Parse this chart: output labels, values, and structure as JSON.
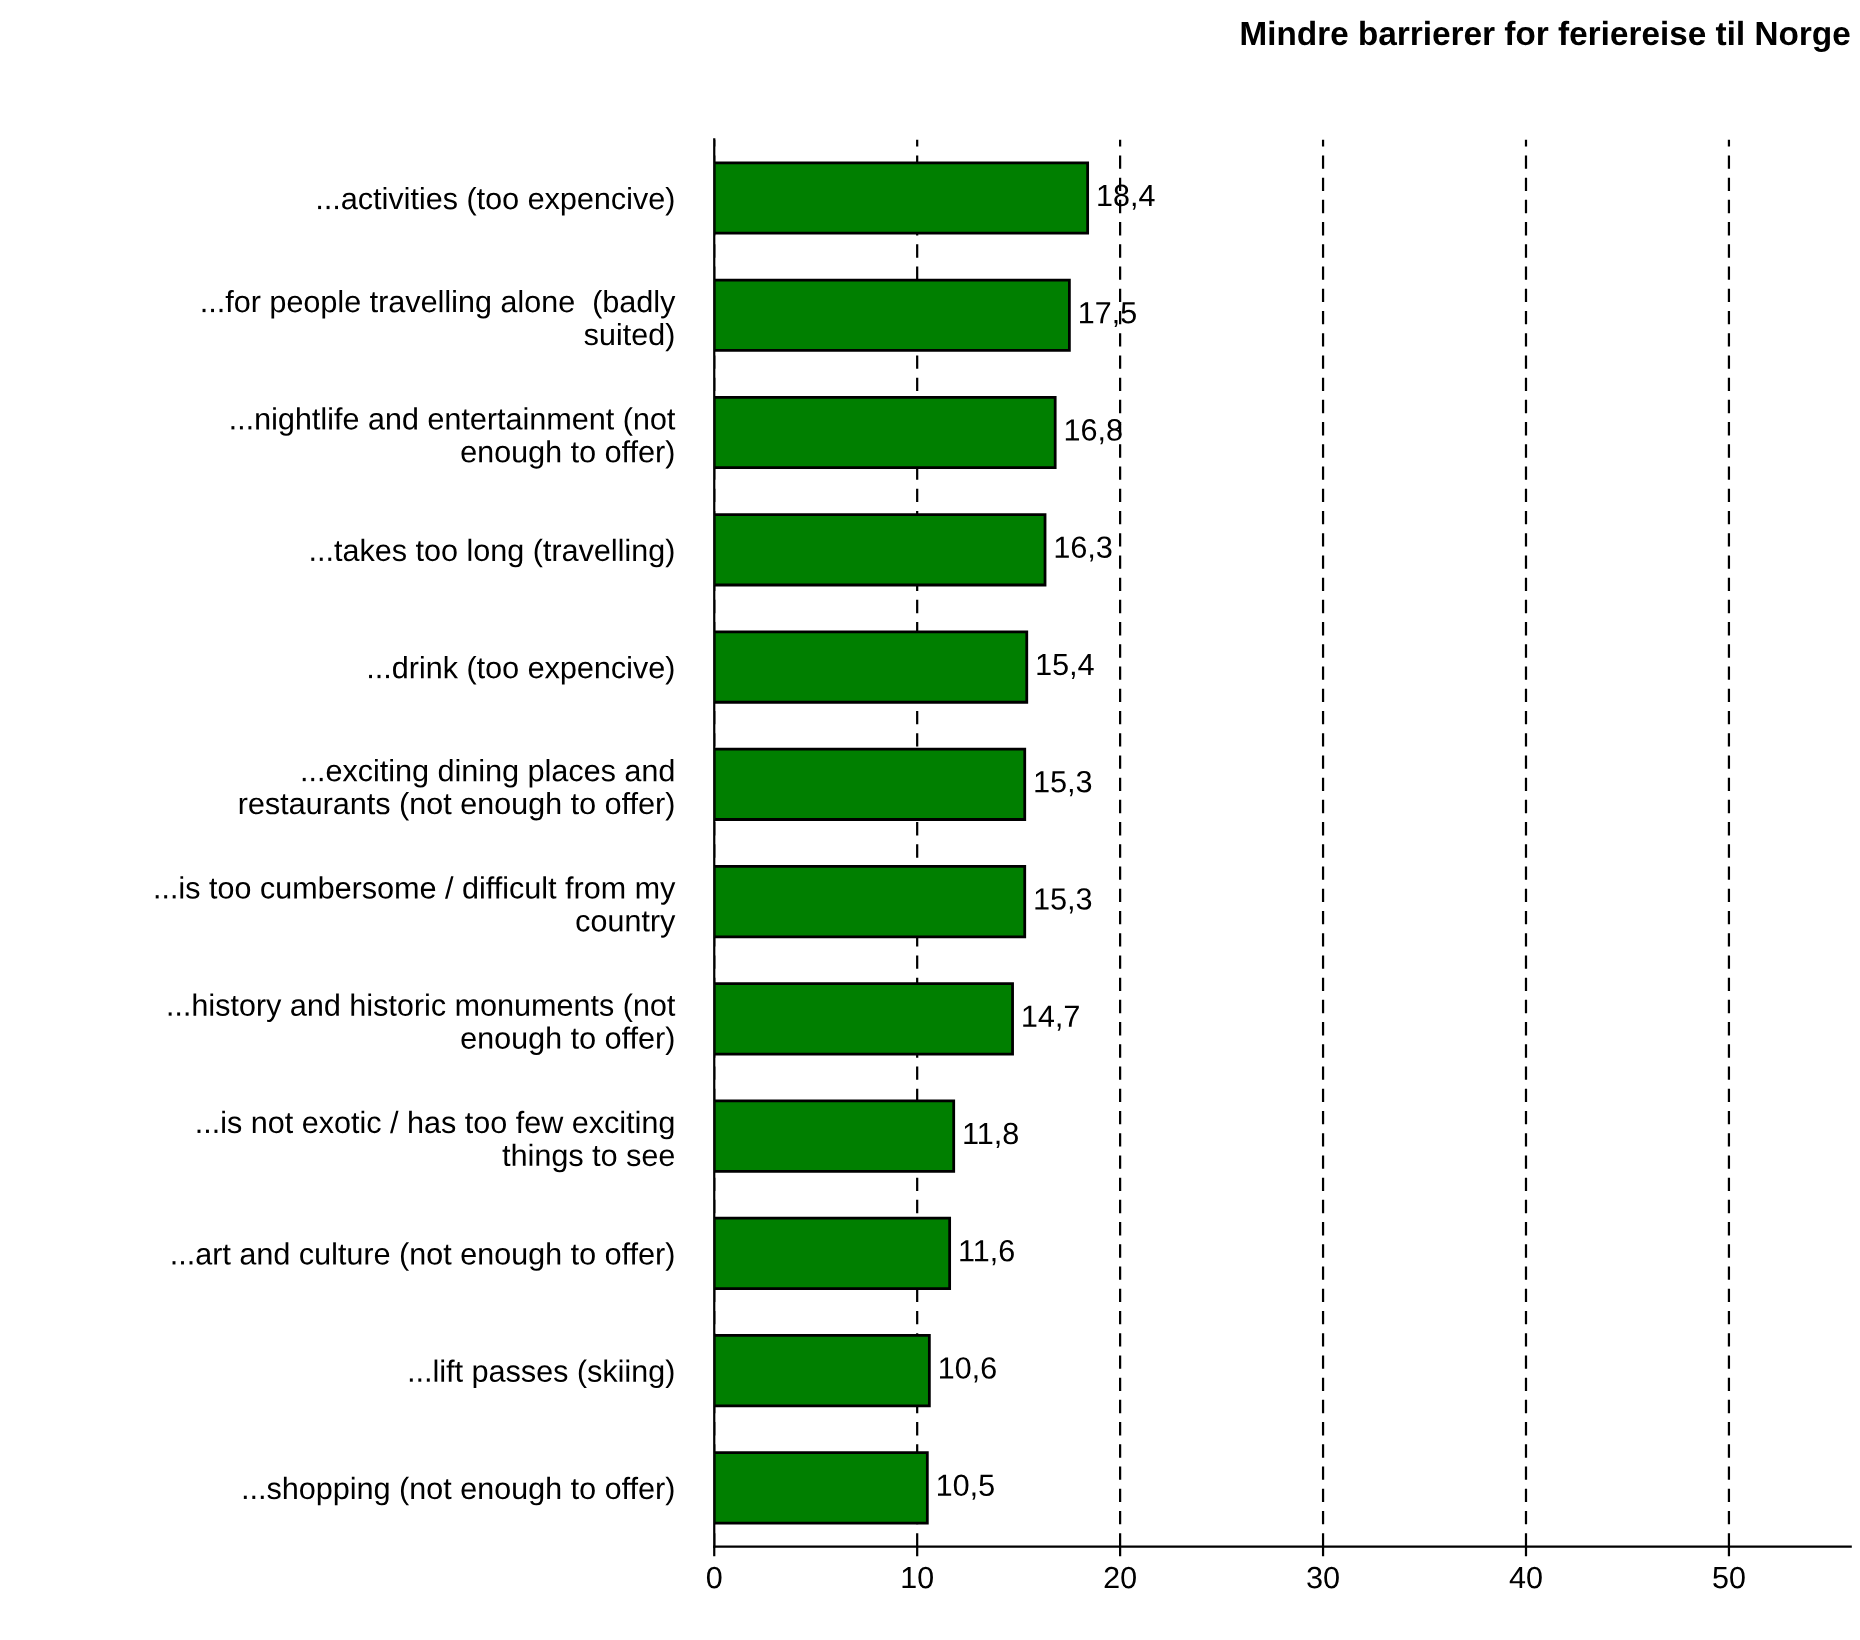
{
  "chart_data": {
    "type": "bar",
    "orientation": "horizontal",
    "title": "Mindre barrierer for feriereise til Norge",
    "categories": [
      "...activities (too expencive)",
      "...for people travelling alone  (badly\nsuited)",
      "...nightlife and entertainment (not\nenough to offer)",
      "...takes too long (travelling)",
      "...drink (too expencive)",
      "...exciting dining places and\nrestaurants (not enough to offer)",
      "...is too cumbersome / difficult from my\ncountry",
      "...history and historic monuments (not\nenough to offer)",
      "...is not exotic / has too few exciting\nthings to see",
      "...art and culture (not enough to offer)",
      "...lift passes (skiing)",
      "...shopping (not enough to offer)"
    ],
    "values": [
      18.4,
      17.5,
      16.8,
      16.3,
      15.4,
      15.3,
      15.3,
      14.7,
      11.8,
      11.6,
      10.6,
      10.5
    ],
    "value_labels": [
      "18,4",
      "17,5",
      "16,8",
      "16,3",
      "15,4",
      "15,3",
      "15,3",
      "14,7",
      "11,8",
      "11,6",
      "10,6",
      "10,5"
    ],
    "color": "#007f00",
    "xlim": [
      0,
      56
    ],
    "xticks": [
      0,
      10,
      20,
      30,
      40,
      50
    ],
    "grid": "x",
    "line_style": "dashed"
  }
}
